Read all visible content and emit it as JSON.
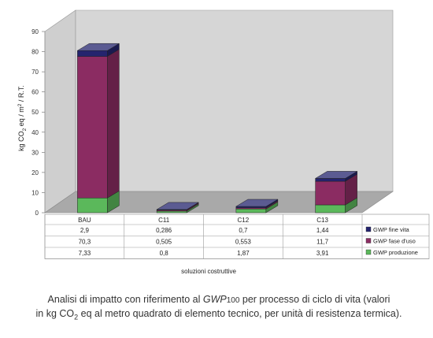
{
  "chart_data": {
    "type": "bar",
    "stacked": true,
    "three_d": true,
    "categories": [
      "BAU",
      "C11",
      "C12",
      "C13"
    ],
    "series": [
      {
        "name": "GWP produzione",
        "color": "#5bb85b",
        "values": [
          7.33,
          0.8,
          1.87,
          3.91
        ],
        "labels": [
          "7,33",
          "0,8",
          "1,87",
          "3,91"
        ]
      },
      {
        "name": "GWP fase d'uso",
        "color": "#8b2c62",
        "values": [
          70.3,
          0.505,
          0.553,
          11.7
        ],
        "labels": [
          "70,3",
          "0,505",
          "0,553",
          "11,7"
        ]
      },
      {
        "name": "GWP fine vita",
        "color": "#24246e",
        "values": [
          2.9,
          0.286,
          0.7,
          1.44
        ],
        "labels": [
          "2,9",
          "0,286",
          "0,7",
          "1,44"
        ]
      }
    ],
    "table_row_order": [
      2,
      1,
      0
    ],
    "ylim": [
      0,
      90
    ],
    "yticks": [
      "0",
      "10",
      "20",
      "30",
      "40",
      "50",
      "60",
      "70",
      "80",
      "90"
    ],
    "ylabel": "kg CO2 eq / m2 / R.T.",
    "xlabel": "soluzioni costruttive",
    "grid": false
  },
  "caption": {
    "part1": "Analisi di impatto con riferimento al ",
    "gwp": "GWP",
    "gwp_sub": "100",
    "part2": " per processo di ciclo di vita (valori",
    "line2a": "in kg CO",
    "line2_sub": "2",
    "line2b": " eq al metro quadrato di elemento tecnico, per unità di resistenza termica)."
  }
}
